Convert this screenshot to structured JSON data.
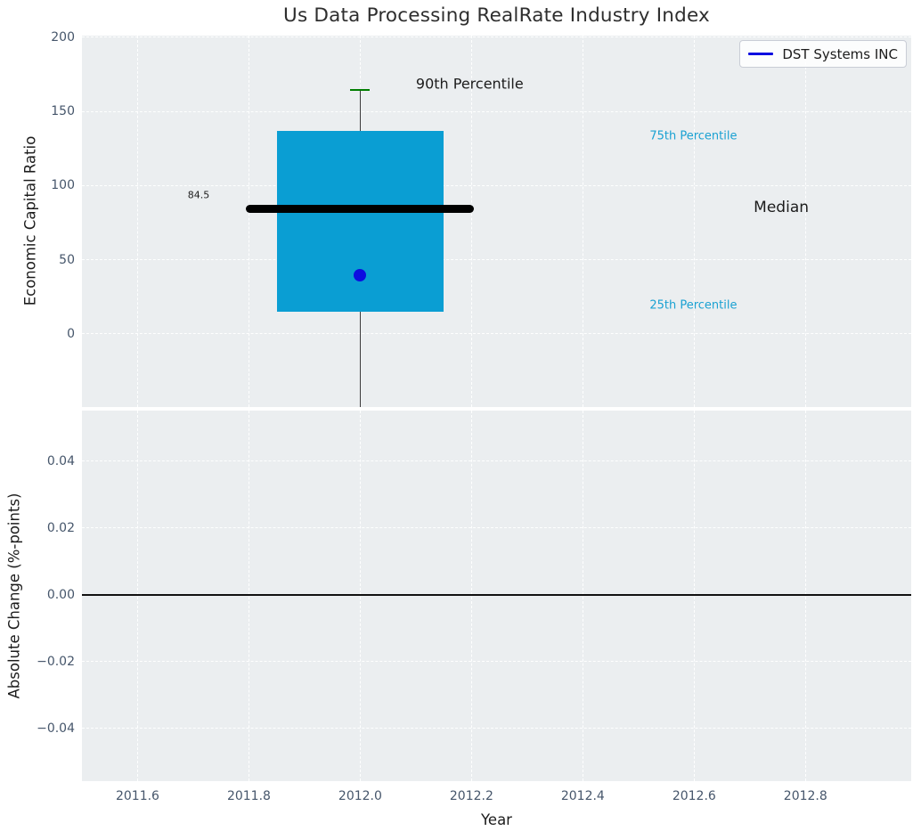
{
  "title": "Us Data Processing RealRate Industry Index",
  "legend": {
    "label": "DST Systems INC"
  },
  "colors": {
    "axes_bg": "#ebeef0",
    "grid": "#ffffff",
    "box_fill": "#0a9ed3",
    "percentile_text": "#1aa1d2",
    "median_line": "#000000",
    "cap_green": "#007d00",
    "company_blue": "#0d0de0",
    "whisker": "#3c3c3c",
    "tick_text": "#46566b",
    "text_dark": "#1c1c1c",
    "zero_line": "#111111"
  },
  "chart_data": [
    {
      "type": "boxplot",
      "title": "Us Data Processing RealRate Industry Index",
      "ylabel": "Economic Capital Ratio",
      "xlabel": "",
      "ylim": [
        -49.3,
        201.2
      ],
      "yticks": [
        200,
        150,
        100,
        50,
        0
      ],
      "ytick_labels": [
        "200",
        "150",
        "100",
        "50",
        "0"
      ],
      "xlim": [
        2011.5,
        2012.99
      ],
      "grid": true,
      "legend_entries": [
        "DST Systems INC"
      ],
      "legend_position": "upper right",
      "series": [
        {
          "name": "industry-distribution-box",
          "x": 2012.0,
          "median": 84.5,
          "q1": 15,
          "q3": 137,
          "p90": 164.5,
          "whisker_low": null,
          "whisker_low_note": "whisker extends below visible axis range (clipped)",
          "box_width": 0.3,
          "median_line_width": 0.41,
          "cap_width": 0.035
        },
        {
          "name": "DST Systems INC",
          "type": "point",
          "x": 2012.0,
          "y": 39.5
        }
      ],
      "annotations": [
        {
          "text": "90th Percentile",
          "x": 2012.1,
          "y": 168.5,
          "color": "dark",
          "size": 16
        },
        {
          "text": "75th Percentile",
          "x": 2012.52,
          "y": 133.5,
          "color": "cyan",
          "size": 13
        },
        {
          "text": "Median",
          "x": 2012.707,
          "y": 85.3,
          "color": "dark",
          "size": 17
        },
        {
          "text": "25th Percentile",
          "x": 2012.52,
          "y": 19.0,
          "color": "cyan",
          "size": 13
        },
        {
          "text": "84.5",
          "x": 2011.69,
          "y": 93.4,
          "color": "dark",
          "size": 11
        }
      ]
    },
    {
      "type": "line",
      "ylabel": "Absolute Change (%-points)",
      "xlabel": "Year",
      "ylim": [
        -0.0558,
        0.0552
      ],
      "yticks": [
        0.04,
        0.02,
        0,
        -0.02,
        -0.04
      ],
      "ytick_labels": [
        "0.04",
        "0.02",
        "0.00",
        "−0.02",
        "−0.04"
      ],
      "xlim": [
        2011.5,
        2012.99
      ],
      "xticks": [
        2011.6,
        2011.8,
        2012.0,
        2012.2,
        2012.4,
        2012.6,
        2012.8
      ],
      "xtick_labels": [
        "2011.6",
        "2011.8",
        "2012.0",
        "2012.2",
        "2012.4",
        "2012.6",
        "2012.8"
      ],
      "zero_line": 0,
      "grid": true,
      "series": []
    }
  ]
}
